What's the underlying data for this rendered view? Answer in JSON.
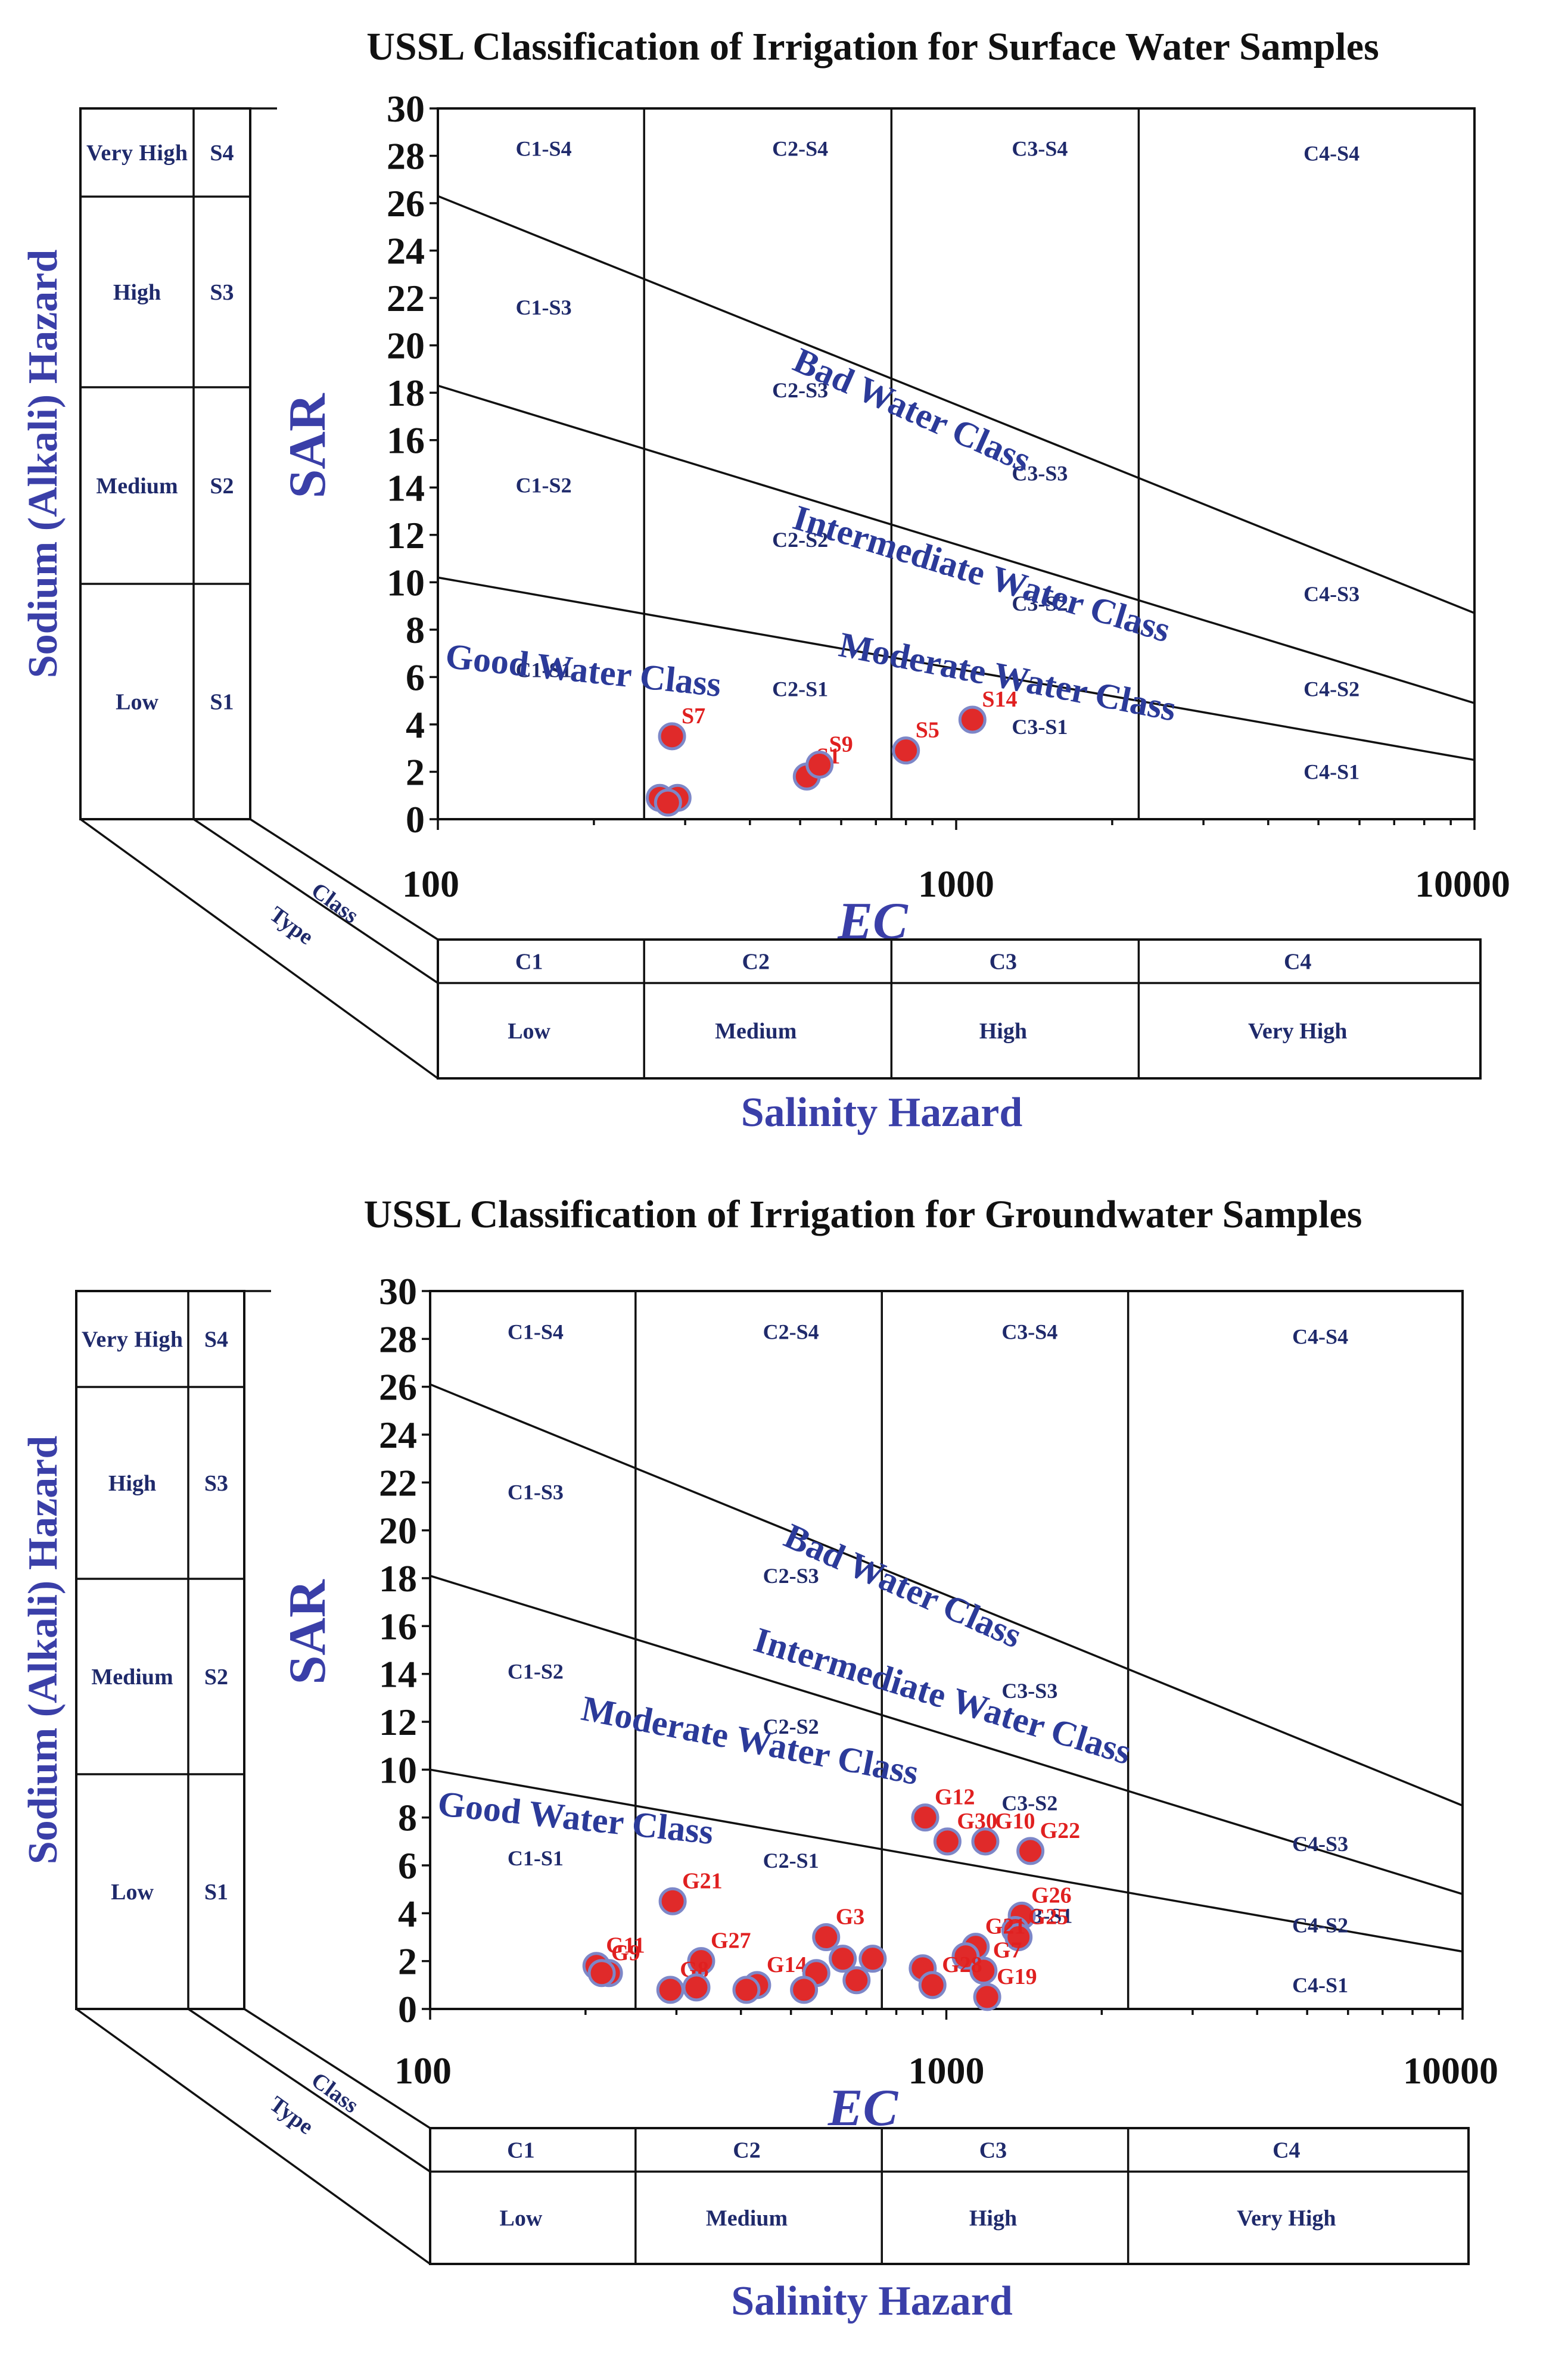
{
  "chart_data": [
    {
      "type": "scatter",
      "title": "USSL Classification of Irrigation for Surface Water Samples",
      "xlabel": "EC",
      "ylabel": "SAR",
      "x_scale": "log",
      "xlim": [
        100,
        10000
      ],
      "ylim": [
        0,
        30
      ],
      "x_ticks": [
        "100",
        "1000",
        "10000"
      ],
      "y_ticks": [
        "0",
        "2",
        "4",
        "6",
        "8",
        "10",
        "12",
        "14",
        "16",
        "18",
        "20",
        "22",
        "24",
        "26",
        "28",
        "30"
      ],
      "salinity_hazard_label": "Salinity Hazard",
      "sodium_hazard_label": "Sodium (Alkali) Hazard",
      "class_label": "Class",
      "type_label": "Type",
      "salinity_classes": [
        {
          "code": "C1",
          "name": "Low"
        },
        {
          "code": "C2",
          "name": "Medium"
        },
        {
          "code": "C3",
          "name": "High"
        },
        {
          "code": "C4",
          "name": "Very High"
        }
      ],
      "sodium_classes": [
        {
          "code": "S4",
          "name": "Very High"
        },
        {
          "code": "S3",
          "name": "High"
        },
        {
          "code": "S2",
          "name": "Medium"
        },
        {
          "code": "S1",
          "name": "Low"
        }
      ],
      "region_labels": [
        {
          "text": "C1-S4",
          "x": 160,
          "y": 28.3
        },
        {
          "text": "C2-S4",
          "x": 500,
          "y": 28.3
        },
        {
          "text": "C3-S4",
          "x": 1450,
          "y": 28.3
        },
        {
          "text": "C4-S4",
          "x": 5300,
          "y": 28.1
        },
        {
          "text": "C1-S3",
          "x": 160,
          "y": 21.6
        },
        {
          "text": "C2-S3",
          "x": 500,
          "y": 18.1
        },
        {
          "text": "C3-S3",
          "x": 1450,
          "y": 14.6
        },
        {
          "text": "C1-S2",
          "x": 160,
          "y": 14.1
        },
        {
          "text": "C2-S2",
          "x": 500,
          "y": 11.8
        },
        {
          "text": "C3-S2",
          "x": 1450,
          "y": 9.1
        },
        {
          "text": "C4-S3",
          "x": 5300,
          "y": 9.5
        },
        {
          "text": "C1-S1",
          "x": 160,
          "y": 6.3
        },
        {
          "text": "C2-S1",
          "x": 500,
          "y": 5.5
        },
        {
          "text": "C3-S1",
          "x": 1450,
          "y": 3.9
        },
        {
          "text": "C4-S2",
          "x": 5300,
          "y": 5.5
        },
        {
          "text": "C4-S1",
          "x": 5300,
          "y": 2.0
        }
      ],
      "boundary_lines": [
        {
          "name": "S3/S4",
          "points": [
            [
              100,
              26.3
            ],
            [
              10000,
              8.7
            ]
          ]
        },
        {
          "name": "S2/S3",
          "points": [
            [
              100,
              18.3
            ],
            [
              10000,
              4.9
            ]
          ]
        },
        {
          "name": "S1/S2",
          "points": [
            [
              100,
              10.2
            ],
            [
              10000,
              2.5
            ]
          ]
        }
      ],
      "class_names": [
        {
          "text": "Bad Water Class",
          "x": 480,
          "y": 19.0,
          "angle": 24
        },
        {
          "text": "Intermediate Water Class",
          "x": 480,
          "y": 12.3,
          "angle": 17
        },
        {
          "text": "Moderate Water Class",
          "x": 590,
          "y": 6.9,
          "angle": 11
        },
        {
          "text": "Good Water Class",
          "x": 103,
          "y": 6.4,
          "angle": 6
        }
      ],
      "points": [
        {
          "label": "S7",
          "x": 283,
          "y": 3.5
        },
        {
          "label": "S1",
          "x": 515,
          "y": 1.8
        },
        {
          "label": "S9",
          "x": 545,
          "y": 2.3
        },
        {
          "label": "S5",
          "x": 800,
          "y": 2.9
        },
        {
          "label": "S14",
          "x": 1075,
          "y": 4.2
        },
        {
          "label": "",
          "x": 268,
          "y": 0.9
        },
        {
          "label": "",
          "x": 290,
          "y": 0.9
        },
        {
          "label": "",
          "x": 278,
          "y": 0.7
        }
      ]
    },
    {
      "type": "scatter",
      "title": "USSL Classification of Irrigation for Groundwater Samples",
      "xlabel": "EC",
      "ylabel": "SAR",
      "x_scale": "log",
      "xlim": [
        100,
        10000
      ],
      "ylim": [
        0,
        30
      ],
      "x_ticks": [
        "100",
        "1000",
        "10000"
      ],
      "y_ticks": [
        "0",
        "2",
        "4",
        "6",
        "8",
        "10",
        "12",
        "14",
        "16",
        "18",
        "20",
        "22",
        "24",
        "26",
        "28",
        "30"
      ],
      "salinity_hazard_label": "Salinity Hazard",
      "sodium_hazard_label": "Sodium (Alkali) Hazard",
      "class_label": "Class",
      "type_label": "Type",
      "salinity_classes": [
        {
          "code": "C1",
          "name": "Low"
        },
        {
          "code": "C2",
          "name": "Medium"
        },
        {
          "code": "C3",
          "name": "High"
        },
        {
          "code": "C4",
          "name": "Very High"
        }
      ],
      "sodium_classes": [
        {
          "code": "S4",
          "name": "Very High"
        },
        {
          "code": "S3",
          "name": "High"
        },
        {
          "code": "S2",
          "name": "Medium"
        },
        {
          "code": "S1",
          "name": "Low"
        }
      ],
      "region_labels": [
        {
          "text": "C1-S4",
          "x": 160,
          "y": 28.3
        },
        {
          "text": "C2-S4",
          "x": 500,
          "y": 28.3
        },
        {
          "text": "C3-S4",
          "x": 1450,
          "y": 28.3
        },
        {
          "text": "C4-S4",
          "x": 5300,
          "y": 28.1
        },
        {
          "text": "C1-S3",
          "x": 160,
          "y": 21.6
        },
        {
          "text": "C2-S3",
          "x": 500,
          "y": 18.1
        },
        {
          "text": "C3-S3",
          "x": 1450,
          "y": 13.3
        },
        {
          "text": "C1-S2",
          "x": 160,
          "y": 14.1
        },
        {
          "text": "C2-S2",
          "x": 500,
          "y": 11.8
        },
        {
          "text": "C3-S2",
          "x": 1450,
          "y": 8.6
        },
        {
          "text": "C4-S3",
          "x": 5300,
          "y": 6.9
        },
        {
          "text": "C1-S1",
          "x": 160,
          "y": 6.3
        },
        {
          "text": "C2-S1",
          "x": 500,
          "y": 6.2
        },
        {
          "text": "C3-S1",
          "x": 1550,
          "y": 3.9
        },
        {
          "text": "C4-S2",
          "x": 5300,
          "y": 3.5
        },
        {
          "text": "C4-S1",
          "x": 5300,
          "y": 1.0
        }
      ],
      "boundary_lines": [
        {
          "name": "S3/S4",
          "points": [
            [
              100,
              26.1
            ],
            [
              10000,
              8.5
            ]
          ]
        },
        {
          "name": "S2/S3",
          "points": [
            [
              100,
              18.1
            ],
            [
              10000,
              4.8
            ]
          ]
        },
        {
          "name": "S1/S2",
          "points": [
            [
              100,
              10.0
            ],
            [
              10000,
              2.4
            ]
          ]
        }
      ],
      "class_names": [
        {
          "text": "Bad Water Class",
          "x": 480,
          "y": 19.4,
          "angle": 24
        },
        {
          "text": "Intermediate Water Class",
          "x": 420,
          "y": 15.0,
          "angle": 17
        },
        {
          "text": "Moderate Water Class",
          "x": 195,
          "y": 12.1,
          "angle": 11
        },
        {
          "text": "Good Water Class",
          "x": 103,
          "y": 8.1,
          "angle": 6
        }
      ],
      "points": [
        {
          "label": "G12",
          "x": 910,
          "y": 8.0
        },
        {
          "label": "G30",
          "x": 1005,
          "y": 7.0
        },
        {
          "label": "G10",
          "x": 1190,
          "y": 7.0
        },
        {
          "label": "G22",
          "x": 1455,
          "y": 6.6
        },
        {
          "label": "G21",
          "x": 295,
          "y": 4.5
        },
        {
          "label": "G26",
          "x": 1400,
          "y": 3.9
        },
        {
          "label": "",
          "x": 1360,
          "y": 3.3
        },
        {
          "label": "G25",
          "x": 1380,
          "y": 3.0
        },
        {
          "label": "G3",
          "x": 585,
          "y": 3.0
        },
        {
          "label": "G21",
          "x": 1140,
          "y": 2.6
        },
        {
          "label": "",
          "x": 1090,
          "y": 2.2
        },
        {
          "label": "G27",
          "x": 335,
          "y": 2.0
        },
        {
          "label": "G11",
          "x": 210,
          "y": 1.8
        },
        {
          "label": "",
          "x": 222,
          "y": 1.5
        },
        {
          "label": "G14",
          "x": 430,
          "y": 1.0
        },
        {
          "label": "",
          "x": 560,
          "y": 1.5
        },
        {
          "label": "",
          "x": 630,
          "y": 2.1
        },
        {
          "label": "",
          "x": 720,
          "y": 2.1
        },
        {
          "label": "",
          "x": 900,
          "y": 1.7
        },
        {
          "label": "",
          "x": 670,
          "y": 1.2
        },
        {
          "label": "G7",
          "x": 1180,
          "y": 1.6
        },
        {
          "label": "G9",
          "x": 215,
          "y": 1.5
        },
        {
          "label": "G8",
          "x": 292,
          "y": 0.8
        },
        {
          "label": "",
          "x": 328,
          "y": 0.9
        },
        {
          "label": "",
          "x": 410,
          "y": 0.8
        },
        {
          "label": "",
          "x": 530,
          "y": 0.8
        },
        {
          "label": "G28",
          "x": 940,
          "y": 1.0
        },
        {
          "label": "G19",
          "x": 1200,
          "y": 0.5
        }
      ]
    }
  ]
}
